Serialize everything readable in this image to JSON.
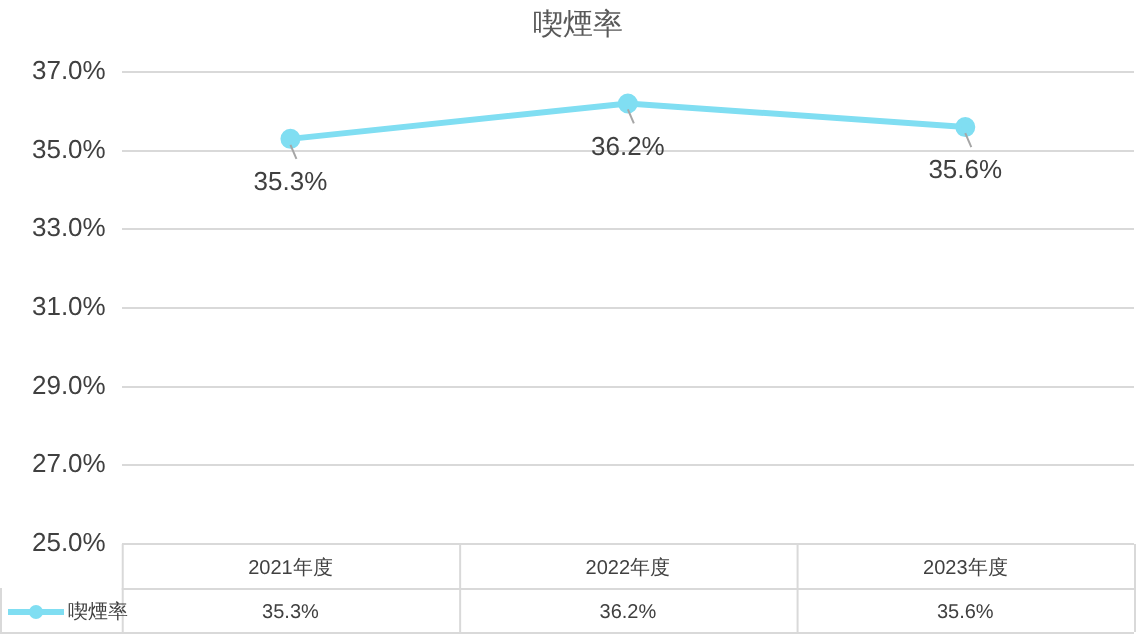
{
  "chart_data": {
    "type": "line",
    "title": "喫煙率",
    "categories": [
      "2021年度",
      "2022年度",
      "2023年度"
    ],
    "series": [
      {
        "name": "喫煙率",
        "color": "#80def2",
        "values": [
          35.3,
          36.2,
          35.6
        ],
        "value_labels": [
          "35.3%",
          "36.2%",
          "35.6%"
        ]
      }
    ],
    "ylim": [
      25,
      37
    ],
    "yticks": [
      {
        "value": 25,
        "label": "25.0%"
      },
      {
        "value": 27,
        "label": "27.0%"
      },
      {
        "value": 29,
        "label": "29.0%"
      },
      {
        "value": 31,
        "label": "31.0%"
      },
      {
        "value": 33,
        "label": "33.0%"
      },
      {
        "value": 35,
        "label": "35.0%"
      },
      {
        "value": 37,
        "label": "37.0%"
      }
    ],
    "grid": "y",
    "marker": "circle",
    "legend": "bottom left"
  }
}
